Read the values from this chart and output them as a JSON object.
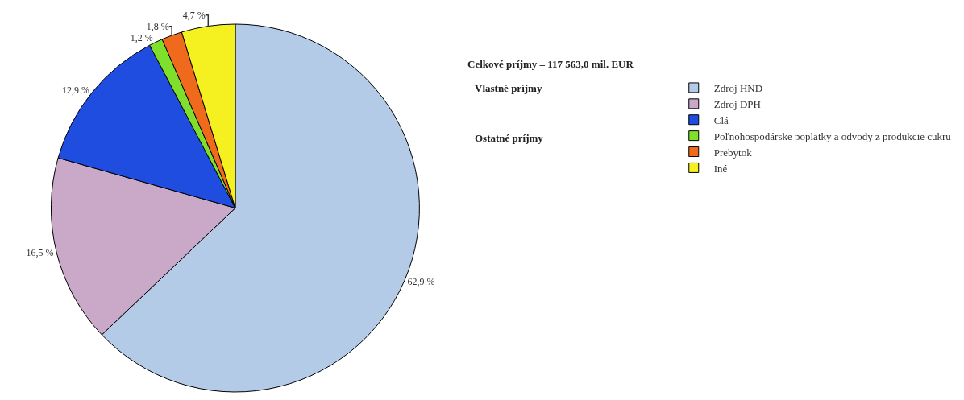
{
  "chart_data": {
    "type": "pie",
    "title": "Celkové príjmy – 117 563,0 mil. EUR",
    "categories": [
      "Zdroj HND",
      "Zdroj DPH",
      "Clá",
      "Poľnohospodárske poplatky a odvody z produkcie cukru",
      "Prebytok",
      "Iné"
    ],
    "values": [
      62.9,
      16.5,
      12.9,
      1.2,
      1.8,
      4.7
    ],
    "value_labels": [
      "62,9 %",
      "16,5 %",
      "12,9 %",
      "1,2 %",
      "1,8 %",
      "4,7 %"
    ],
    "colors": [
      "#b4cbe8",
      "#c9a8c8",
      "#1f4de0",
      "#7ee02a",
      "#f06a1e",
      "#f5f020"
    ],
    "annotations": [
      "Vlastné príjmy",
      "Ostatné príjmy"
    ],
    "legend": "right"
  }
}
